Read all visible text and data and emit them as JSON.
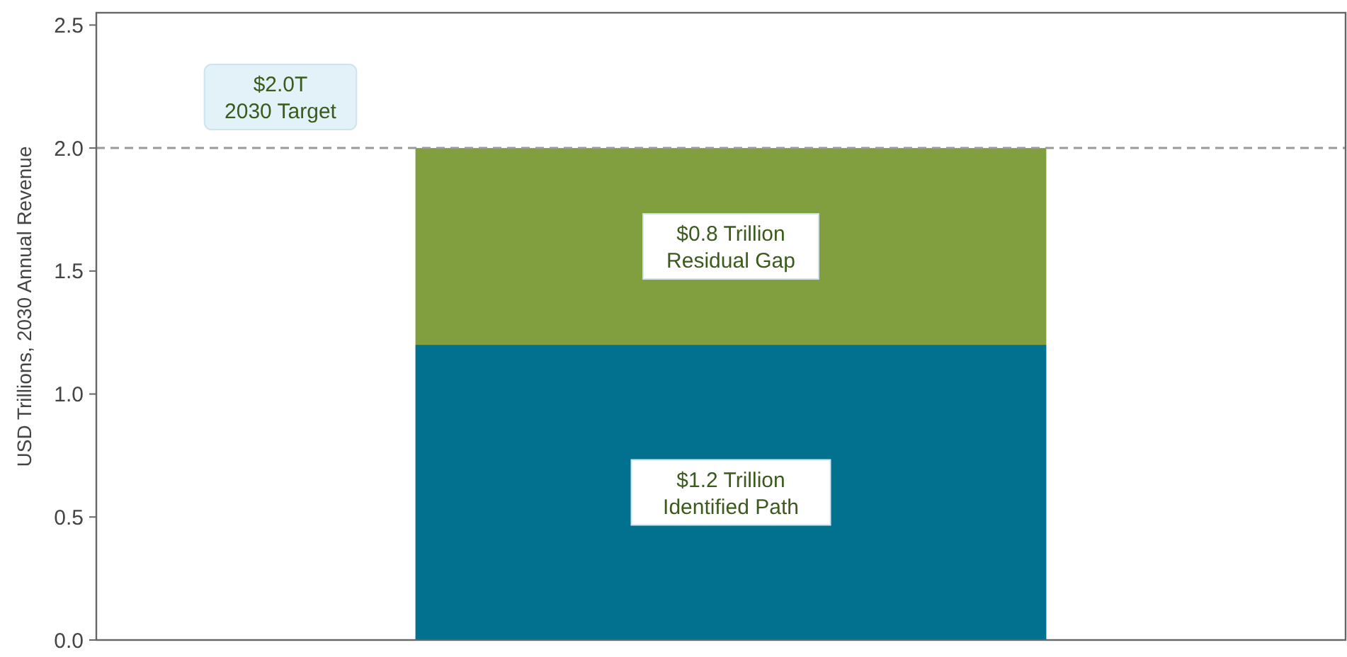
{
  "chart_data": {
    "type": "bar",
    "stacked": true,
    "categories": [
      null
    ],
    "series": [
      {
        "color": "#02718f",
        "values": [
          1.2
        ]
      },
      {
        "color": "#819f3e",
        "values": [
          0.8
        ]
      }
    ],
    "ylabel": "USD Trillions, 2030 Annual Revenue",
    "ylim": [
      0,
      2.55
    ],
    "yticks": [
      {
        "value": 0,
        "label": "0.0"
      },
      0.5,
      {
        "value": 1,
        "label": "1.0"
      },
      1.5,
      {
        "value": 2,
        "label": "2.0"
      },
      2.5
    ],
    "ref_lines": [
      {
        "axis": "y",
        "value": 2.0,
        "label": "$2.0T\n2030 Target",
        "color": "#999999",
        "line_style": "dashed"
      }
    ],
    "annotations": [
      "$1.2 Trillion\nIdentified Path",
      "$0.8 Trillion\nResidual Gap"
    ],
    "grid": false
  }
}
